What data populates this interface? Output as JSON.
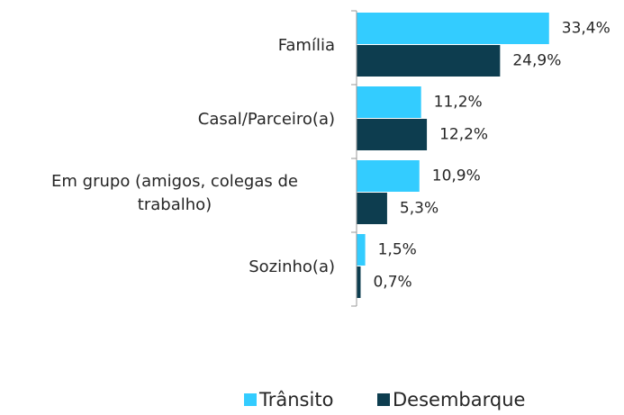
{
  "chart_data": {
    "type": "bar",
    "orientation": "horizontal",
    "categories": [
      "Família",
      "Casal/Parceiro(a)",
      "Em grupo (amigos, colegas de trabalho)",
      "Sozinho(a)"
    ],
    "series": [
      {
        "name": "Trânsito",
        "color": "#33ccff",
        "values": [
          33.4,
          11.2,
          10.9,
          1.5
        ],
        "value_labels": [
          "33,4%",
          "11,2%",
          "10,9%",
          "1,5%"
        ]
      },
      {
        "name": "Desembarque",
        "color": "#0d3d4f",
        "values": [
          24.9,
          12.2,
          5.3,
          0.7
        ],
        "value_labels": [
          "24,9%",
          "12,2%",
          "5,3%",
          "0,7%"
        ]
      }
    ],
    "xlim": [
      0,
      50
    ],
    "legend": "bottom"
  }
}
